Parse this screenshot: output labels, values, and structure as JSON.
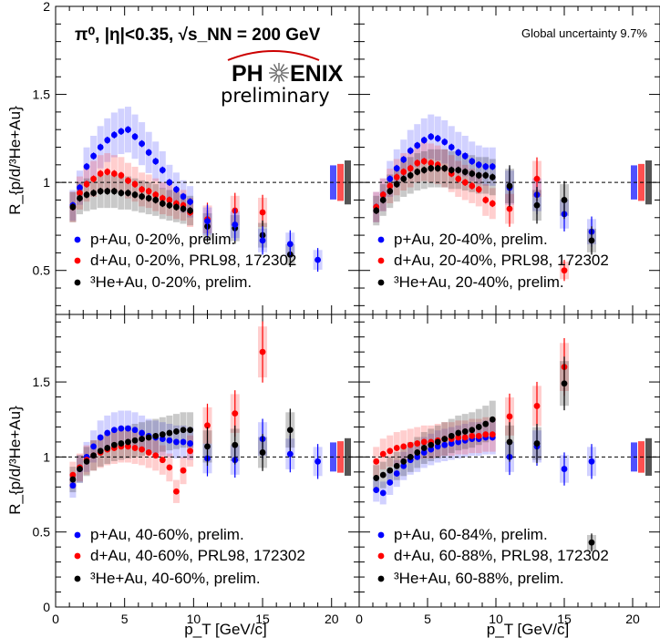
{
  "header": {
    "title": "π⁰, |η|<0.35,  √s_NN = 200 GeV",
    "global_uncertainty": "Global uncertainty 9.7%",
    "logo_left": "PH",
    "logo_right": "ENIX",
    "logo_sub": "preliminary"
  },
  "axis": {
    "ylabel": "R_{p/d/³He+Au}",
    "xlabel": "p_T [GeV/c]",
    "x_ticks": [
      "0",
      "5",
      "10",
      "15",
      "20"
    ],
    "y_ticks_top": [
      "0.5",
      "1",
      "1.5",
      "2"
    ],
    "y_ticks_bottom": [
      "0",
      "0.5",
      "1",
      "1.5"
    ]
  },
  "colors": {
    "pAu": "#0000ff",
    "dAu": "#ff0000",
    "HeAu": "#000000"
  },
  "chart_data": [
    {
      "type": "scatter",
      "panel": "top-left",
      "xlim": [
        0,
        22
      ],
      "ylim": [
        0.25,
        2
      ],
      "reference_line": 1,
      "legend": [
        "p+Au, 0-20%, prelim.",
        "d+Au, 0-20%, PRL98, 172302",
        "³He+Au, 0-20%, prelim."
      ],
      "series": [
        {
          "name": "p+Au, 0-20%, prelim.",
          "x": [
            1.25,
            1.75,
            2.25,
            2.75,
            3.25,
            3.75,
            4.25,
            4.75,
            5.25,
            5.75,
            6.25,
            6.75,
            7.25,
            7.75,
            8.25,
            8.75,
            9.25,
            9.75
          ],
          "y": [
            0.87,
            0.97,
            1.09,
            1.15,
            1.2,
            1.24,
            1.27,
            1.29,
            1.3,
            1.26,
            1.22,
            1.17,
            1.12,
            1.07,
            1.0,
            0.96,
            0.92,
            0.89
          ]
        },
        {
          "name": "d+Au, 0-20%, PRL98, 172302",
          "x": [
            1.25,
            1.75,
            2.25,
            2.75,
            3.25,
            3.75,
            4.25,
            4.75,
            5.25,
            5.75,
            6.25,
            6.75,
            7.25,
            7.75,
            8.25,
            8.75,
            9.25,
            9.75,
            11,
            13,
            15
          ],
          "y": [
            0.86,
            0.94,
            0.99,
            1.02,
            1.05,
            1.06,
            1.05,
            1.04,
            1.01,
            0.99,
            0.96,
            0.95,
            0.93,
            0.91,
            0.9,
            0.88,
            0.87,
            0.83,
            0.79,
            0.84,
            0.83
          ]
        },
        {
          "name": "³He+Au, 0-20%, prelim.",
          "x": [
            1.25,
            1.75,
            2.25,
            2.75,
            3.25,
            3.75,
            4.25,
            4.75,
            5.25,
            5.75,
            6.25,
            6.75,
            7.25,
            7.75,
            8.25,
            8.75,
            9.25,
            9.75,
            11,
            13,
            15,
            17
          ],
          "y": [
            0.86,
            0.91,
            0.93,
            0.94,
            0.95,
            0.95,
            0.95,
            0.94,
            0.94,
            0.93,
            0.92,
            0.91,
            0.9,
            0.88,
            0.87,
            0.86,
            0.85,
            0.84,
            0.75,
            0.74,
            0.7,
            0.59
          ]
        },
        {
          "name": "p+Au high pT",
          "x": [
            11,
            13,
            15,
            17,
            19
          ],
          "y": [
            0.78,
            0.76,
            0.67,
            0.65,
            0.56
          ]
        }
      ]
    },
    {
      "type": "scatter",
      "panel": "top-right",
      "xlim": [
        0,
        22
      ],
      "ylim": [
        0.25,
        2
      ],
      "reference_line": 1,
      "legend": [
        "p+Au, 20-40%, prelim.",
        "d+Au, 20-40%, PRL98, 172302",
        "³He+Au, 20-40%, prelim."
      ],
      "series": [
        {
          "name": "p+Au, 20-40%, prelim.",
          "x": [
            1.25,
            1.75,
            2.25,
            2.75,
            3.25,
            3.75,
            4.25,
            4.75,
            5.25,
            5.75,
            6.25,
            6.75,
            7.25,
            7.75,
            8.25,
            8.75,
            9.25,
            9.75,
            11,
            13,
            15,
            17
          ],
          "y": [
            0.86,
            0.93,
            1.02,
            1.08,
            1.13,
            1.18,
            1.21,
            1.24,
            1.26,
            1.25,
            1.23,
            1.2,
            1.17,
            1.15,
            1.12,
            1.1,
            1.09,
            1.09,
            0.97,
            0.93,
            0.82,
            0.72
          ]
        },
        {
          "name": "d+Au, 20-40%, PRL98, 172302",
          "x": [
            1.25,
            1.75,
            2.25,
            2.75,
            3.25,
            3.75,
            4.25,
            4.75,
            5.25,
            5.75,
            6.25,
            6.75,
            7.25,
            7.75,
            8.25,
            8.75,
            9.25,
            9.75,
            11,
            13,
            15
          ],
          "y": [
            0.86,
            0.93,
            0.98,
            1.03,
            1.06,
            1.08,
            1.11,
            1.12,
            1.11,
            1.1,
            1.08,
            1.05,
            1.02,
            1.0,
            0.98,
            0.96,
            0.9,
            0.88,
            0.85,
            1.02,
            0.5
          ]
        },
        {
          "name": "³He+Au, 20-40%, prelim.",
          "x": [
            1.25,
            1.75,
            2.25,
            2.75,
            3.25,
            3.75,
            4.25,
            4.75,
            5.25,
            5.75,
            6.25,
            6.75,
            7.25,
            7.75,
            8.25,
            8.75,
            9.25,
            9.75,
            11,
            13,
            15,
            17
          ],
          "y": [
            0.84,
            0.9,
            0.95,
            0.99,
            1.02,
            1.04,
            1.06,
            1.07,
            1.08,
            1.08,
            1.08,
            1.07,
            1.07,
            1.06,
            1.05,
            1.04,
            1.04,
            1.03,
            0.98,
            0.87,
            0.9,
            0.67
          ]
        }
      ]
    },
    {
      "type": "scatter",
      "panel": "bottom-left",
      "xlim": [
        0,
        22
      ],
      "ylim": [
        0,
        1.95
      ],
      "reference_line": 1,
      "legend": [
        "p+Au, 40-60%, prelim.",
        "d+Au, 40-60%, PRL98, 172302",
        "³He+Au, 40-60%, prelim."
      ],
      "series": [
        {
          "name": "p+Au, 40-60%, prelim.",
          "x": [
            1.25,
            1.75,
            2.25,
            2.75,
            3.25,
            3.75,
            4.25,
            4.75,
            5.25,
            5.75,
            6.25,
            6.75,
            7.25,
            7.75,
            8.25,
            8.75,
            9.25,
            9.75,
            11,
            13,
            15,
            17,
            19
          ],
          "y": [
            0.81,
            0.92,
            1.0,
            1.07,
            1.13,
            1.16,
            1.18,
            1.19,
            1.19,
            1.18,
            1.16,
            1.14,
            1.13,
            1.12,
            1.11,
            1.1,
            1.1,
            1.09,
            0.99,
            0.98,
            1.12,
            1.02,
            0.97
          ]
        },
        {
          "name": "d+Au, 40-60%, PRL98, 172302",
          "x": [
            1.25,
            1.75,
            2.25,
            2.75,
            3.25,
            3.75,
            4.25,
            4.75,
            5.25,
            5.75,
            6.25,
            6.75,
            7.25,
            7.75,
            8.25,
            8.75,
            9.25,
            9.75,
            11,
            13,
            15
          ],
          "y": [
            0.88,
            0.93,
            0.98,
            1.01,
            1.03,
            1.05,
            1.06,
            1.07,
            1.07,
            1.06,
            1.05,
            1.03,
            1.01,
            0.98,
            0.93,
            0.77,
            0.91,
            1.04,
            1.21,
            1.29,
            1.7
          ]
        },
        {
          "name": "³He+Au, 40-60%, prelim.",
          "x": [
            1.25,
            1.75,
            2.25,
            2.75,
            3.25,
            3.75,
            4.25,
            4.75,
            5.25,
            5.75,
            6.25,
            6.75,
            7.25,
            7.75,
            8.25,
            8.75,
            9.25,
            9.75,
            11,
            13,
            15,
            17
          ],
          "y": [
            0.85,
            0.92,
            0.97,
            1.01,
            1.04,
            1.06,
            1.08,
            1.09,
            1.1,
            1.11,
            1.12,
            1.13,
            1.14,
            1.15,
            1.16,
            1.17,
            1.18,
            1.18,
            1.07,
            1.08,
            1.03,
            1.18
          ]
        }
      ]
    },
    {
      "type": "scatter",
      "panel": "bottom-right",
      "xlim": [
        0,
        22
      ],
      "ylim": [
        0,
        1.95
      ],
      "reference_line": 1,
      "legend": [
        "p+Au, 60-84%, prelim.",
        "d+Au, 60-88%, PRL98, 172302",
        "³He+Au, 60-88%, prelim."
      ],
      "series": [
        {
          "name": "p+Au, 60-84%, prelim.",
          "x": [
            1.25,
            1.75,
            2.25,
            2.75,
            3.25,
            3.75,
            4.25,
            4.75,
            5.25,
            5.75,
            6.25,
            6.75,
            7.25,
            7.75,
            8.25,
            8.75,
            9.25,
            9.75,
            11,
            13,
            15,
            17
          ],
          "y": [
            0.78,
            0.76,
            0.83,
            0.89,
            0.94,
            0.98,
            1.0,
            1.03,
            1.05,
            1.07,
            1.08,
            1.09,
            1.1,
            1.11,
            1.12,
            1.12,
            1.13,
            1.13,
            1.0,
            1.07,
            0.92,
            0.97
          ]
        },
        {
          "name": "d+Au, 60-88%, PRL98, 172302",
          "x": [
            1.25,
            1.75,
            2.25,
            2.75,
            3.25,
            3.75,
            4.25,
            4.75,
            5.25,
            5.75,
            6.25,
            6.75,
            7.25,
            7.75,
            8.25,
            8.75,
            9.25,
            9.75,
            11,
            13,
            15
          ],
          "y": [
            0.97,
            1.02,
            1.04,
            1.06,
            1.07,
            1.08,
            1.09,
            1.1,
            1.1,
            1.11,
            1.12,
            1.12,
            1.13,
            1.13,
            1.14,
            1.14,
            1.15,
            1.15,
            1.27,
            1.34,
            1.6
          ]
        },
        {
          "name": "³He+Au, 60-88%, prelim.",
          "x": [
            1.25,
            1.75,
            2.25,
            2.75,
            3.25,
            3.75,
            4.25,
            4.75,
            5.25,
            5.75,
            6.25,
            6.75,
            7.25,
            7.75,
            8.25,
            8.75,
            9.25,
            9.75,
            11,
            13,
            15,
            17
          ],
          "y": [
            0.86,
            0.88,
            0.91,
            0.94,
            0.97,
            1.0,
            1.03,
            1.06,
            1.08,
            1.1,
            1.12,
            1.14,
            1.16,
            1.17,
            1.18,
            1.2,
            1.22,
            1.25,
            1.1,
            1.09,
            1.49,
            0.43
          ]
        }
      ]
    }
  ]
}
